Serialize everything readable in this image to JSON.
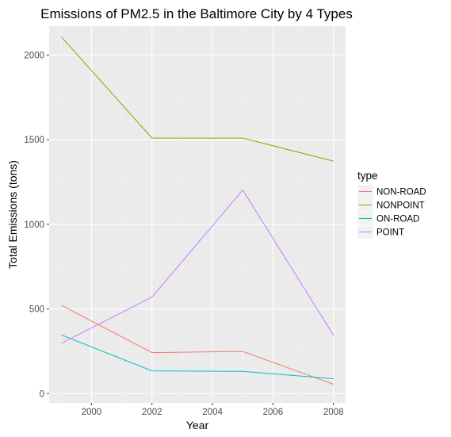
{
  "chart_data": {
    "type": "line",
    "title": "Emissions of PM2.5 in the Baltimore City by 4 Types",
    "xlabel": "Year",
    "ylabel": "Total Emissions (tons)",
    "x": [
      1999,
      2002,
      2005,
      2008
    ],
    "xlim": [
      1998.6,
      2008.4
    ],
    "ylim": [
      -55,
      2170
    ],
    "xticks": [
      2000,
      2002,
      2004,
      2006,
      2008
    ],
    "yticks": [
      0,
      500,
      1000,
      1500,
      2000
    ],
    "grid": true,
    "legend_title": "type",
    "legend_position": "right",
    "series": [
      {
        "name": "NON-ROAD",
        "color": "#F8766D",
        "values": [
          522,
          242,
          249,
          55
        ]
      },
      {
        "name": "NONPOINT",
        "color": "#7CAE00",
        "values": [
          2107,
          1509,
          1509,
          1373
        ]
      },
      {
        "name": "ON-ROAD",
        "color": "#00BFC4",
        "values": [
          347,
          134,
          131,
          88
        ]
      },
      {
        "name": "POINT",
        "color": "#C77CFF",
        "values": [
          297,
          570,
          1202,
          345
        ]
      }
    ]
  }
}
